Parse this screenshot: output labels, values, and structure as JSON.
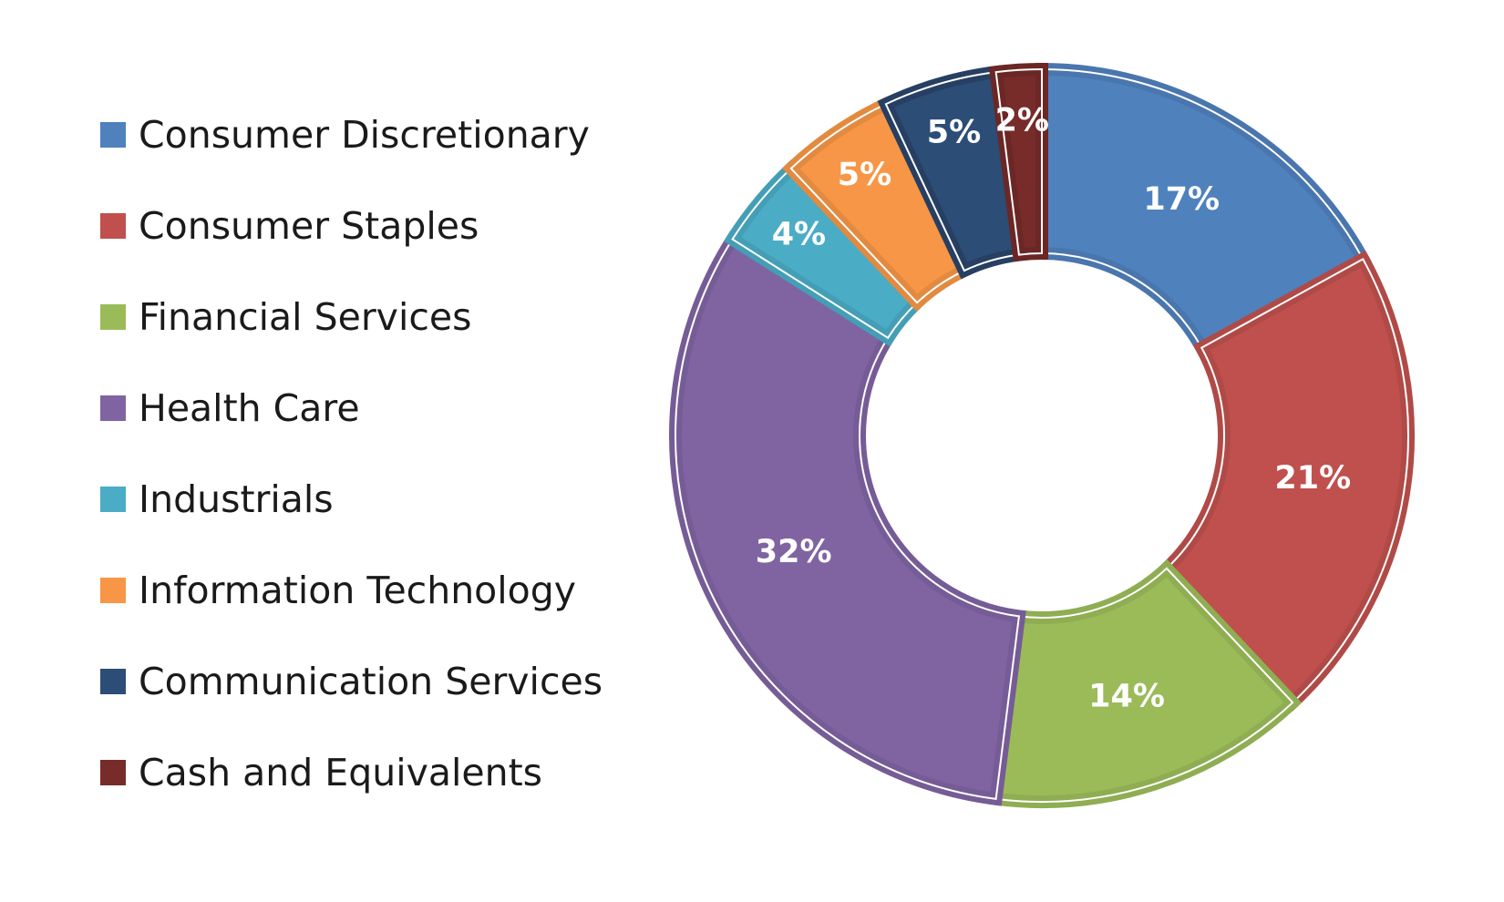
{
  "chart_data": {
    "type": "pie",
    "variant": "donut",
    "title": "",
    "categories": [
      "Consumer Discretionary",
      "Consumer Staples",
      "Financial Services",
      "Health Care",
      "Industrials",
      "Information Technology",
      "Communication Services",
      "Cash and Equivalents"
    ],
    "values": [
      17,
      21,
      14,
      32,
      4,
      5,
      5,
      2
    ],
    "data_labels": [
      "17%",
      "21%",
      "14%",
      "32%",
      "4%",
      "5%",
      "5%",
      "2%"
    ],
    "colors": [
      "#4F81BD",
      "#C0504D",
      "#9BBB59",
      "#8064A2",
      "#4BACC6",
      "#F79646",
      "#2C4D75",
      "#772C2A"
    ],
    "border_colors": [
      "#4A76AE",
      "#B04A47",
      "#8FAD52",
      "#765C96",
      "#449EB6",
      "#E28A40",
      "#273F62",
      "#6B2725"
    ],
    "legend_position": "left",
    "start_angle": "top",
    "direction": "clockwise"
  }
}
